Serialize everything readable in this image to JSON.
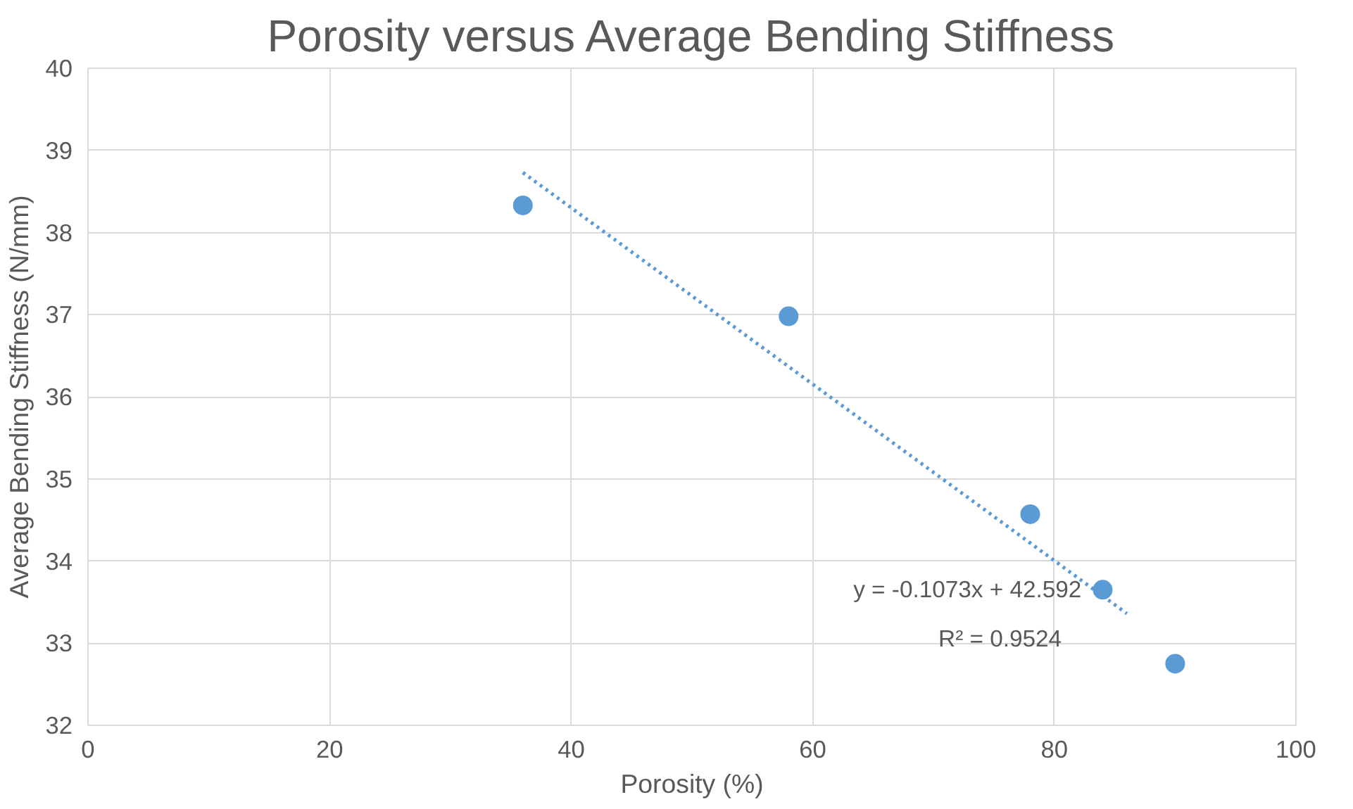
{
  "chart_data": {
    "type": "scatter",
    "title": "Porosity versus Average Bending Stiffness",
    "xlabel": "Porosity (%)",
    "ylabel": "Average Bending Stiffness (N/mm)",
    "xlim": [
      0,
      100
    ],
    "xticks": [
      0,
      20,
      40,
      60,
      80,
      100
    ],
    "ylim": [
      32,
      40
    ],
    "yticks": [
      32,
      33,
      34,
      35,
      36,
      37,
      38,
      39,
      40
    ],
    "grid": true,
    "marker": "circle",
    "series": [
      {
        "color": "#5b9bd5",
        "x": [
          36,
          58,
          78,
          84,
          90
        ],
        "values": [
          38.33,
          36.98,
          34.57,
          33.65,
          32.75
        ]
      },
      {
        "type": "line",
        "color": "#5b9bd5",
        "line_style": "dotted",
        "marker": "none",
        "x": [
          36,
          86
        ],
        "values": [
          38.73,
          33.36
        ]
      }
    ],
    "annotations": [
      "y = -0.1073x + 42.592",
      "R² = 0.9524"
    ]
  }
}
